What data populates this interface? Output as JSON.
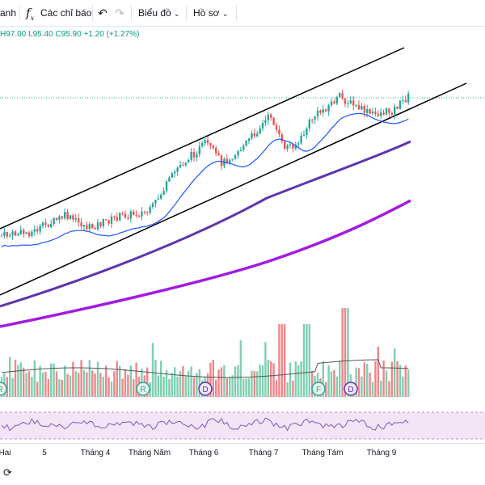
{
  "toolbar": {
    "partial_label": "anh",
    "indicators_icon": "fx-icon",
    "indicators_label": "Các chỉ báo",
    "undo_icon": "undo-icon",
    "redo_icon": "redo-icon",
    "chart_label": "Biểu đồ",
    "profile_label": "Hồ sơ",
    "dropdown_icon": "chevron-down-icon"
  },
  "ohlc": {
    "high": "H97.00",
    "low": "L95.40",
    "close": "C95.90",
    "change": "+1.20 (+1.27%)"
  },
  "time_axis": {
    "ticks": [
      "Hai",
      "5",
      "Tháng 4",
      "Tháng Năm",
      "Tháng 6",
      "Tháng 7",
      "Tháng Tám",
      "Tháng 9"
    ]
  },
  "event_markers": [
    "R",
    "R",
    "D",
    "F",
    "D"
  ],
  "colors": {
    "up": "#26a69a",
    "down": "#ef5350",
    "ma_short": "#2962ff",
    "ma_mid": "#5b2bb5",
    "ma_long": "#9c27dc",
    "rsi_line": "#7e57c2",
    "rsi_band": "#f3e5f5",
    "channel": "#000000",
    "last_price_line": "#26a69a"
  },
  "footer": {
    "reload_icon": "reload-icon"
  }
}
